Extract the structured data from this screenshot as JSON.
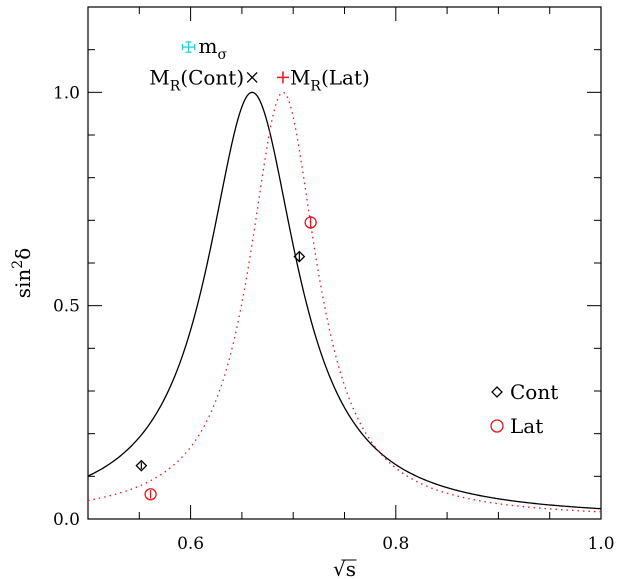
{
  "chart_data": {
    "type": "line",
    "xlabel": "√s",
    "ylabel_main": "sin",
    "ylabel_sup": "2",
    "ylabel_tail": "δ",
    "xlim": [
      0.5,
      1.0
    ],
    "ylim": [
      0.0,
      1.2
    ],
    "x_ticks": [
      0.6,
      0.8,
      1.0
    ],
    "x_tick_labels": [
      "0.6",
      "0.8",
      "1.0"
    ],
    "y_ticks": [
      0.0,
      0.5,
      1.0
    ],
    "y_tick_labels": [
      "0.0",
      "0.5",
      "1.0"
    ],
    "x_minor_step": 0.05,
    "y_minor_step": 0.1,
    "grid": false,
    "legend_position": "bottom-right",
    "series": [
      {
        "name": "Cont",
        "line_style": "solid",
        "color": "#000000",
        "marker": "diamond",
        "curve": {
          "mass": 0.66,
          "width": 0.107
        },
        "points": [
          {
            "x": 0.552,
            "y": 0.125,
            "err": 0.008
          },
          {
            "x": 0.706,
            "y": 0.615,
            "err": 0.012
          }
        ]
      },
      {
        "name": "Lat",
        "line_style": "dotted",
        "color": "#e8141c",
        "marker": "circle",
        "curve": {
          "mass": 0.69,
          "width": 0.081
        },
        "points": [
          {
            "x": 0.561,
            "y": 0.058,
            "err": 0.01
          },
          {
            "x": 0.717,
            "y": 0.695,
            "err": 0.015
          }
        ]
      }
    ],
    "annotations": [
      {
        "id": "m-sigma",
        "text": "m",
        "sub": "σ",
        "x": 0.598,
        "y": 1.106,
        "marker": "errorcross",
        "color": "#22d3d9",
        "xerr": 0.006,
        "yerr": 0.012
      },
      {
        "id": "mr-cont",
        "text": "M",
        "sub": "R",
        "tail": "(Cont)",
        "x": 0.66,
        "y": 1.035,
        "marker": "x",
        "color": "#000000"
      },
      {
        "id": "mr-lat",
        "text": "M",
        "sub": "R",
        "tail": "(Lat)",
        "x": 0.69,
        "y": 1.035,
        "marker": "plus",
        "color": "#e8141c"
      }
    ],
    "legend": [
      {
        "label": "Cont",
        "marker": "diamond",
        "color": "#000000"
      },
      {
        "label": "Lat",
        "marker": "circle",
        "color": "#e8141c"
      }
    ]
  }
}
